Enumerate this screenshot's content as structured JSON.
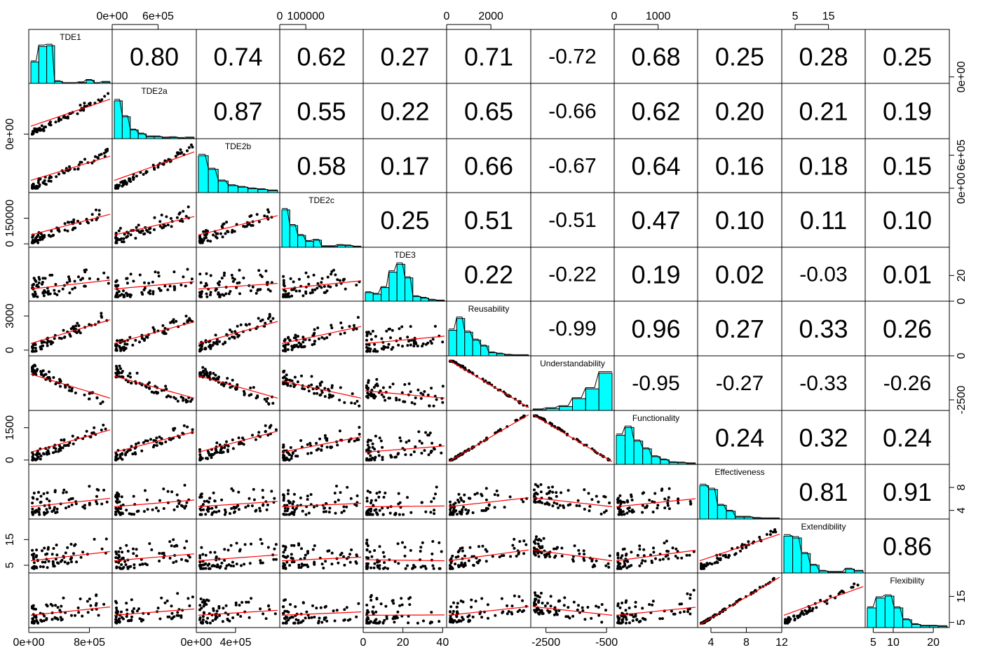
{
  "chart_data": {
    "type": "scatter-matrix",
    "variables": [
      "TDE1",
      "TDE2a",
      "TDE2b",
      "TDE2c",
      "TDE3",
      "Reusability",
      "Understandability",
      "Functionality",
      "Effectiveness",
      "Extendibility",
      "Flexibility"
    ],
    "correlations": [
      [
        "",
        "0.80",
        "0.74",
        "0.62",
        "0.27",
        "0.71",
        "-0.72",
        "0.68",
        "0.25",
        "0.28",
        "0.25"
      ],
      [
        "",
        "",
        "0.87",
        "0.55",
        "0.22",
        "0.65",
        "-0.66",
        "0.62",
        "0.20",
        "0.21",
        "0.19"
      ],
      [
        "",
        "",
        "",
        "0.58",
        "0.17",
        "0.66",
        "-0.67",
        "0.64",
        "0.16",
        "0.18",
        "0.15"
      ],
      [
        "",
        "",
        "",
        "",
        "0.25",
        "0.51",
        "-0.51",
        "0.47",
        "0.10",
        "0.11",
        "0.10"
      ],
      [
        "",
        "",
        "",
        "",
        "",
        "0.22",
        "-0.22",
        "0.19",
        "0.02",
        "-0.03",
        "0.01"
      ],
      [
        "",
        "",
        "",
        "",
        "",
        "",
        "-0.99",
        "0.96",
        "0.27",
        "0.33",
        "0.26"
      ],
      [
        "",
        "",
        "",
        "",
        "",
        "",
        "",
        "-0.95",
        "-0.27",
        "-0.33",
        "-0.26"
      ],
      [
        "",
        "",
        "",
        "",
        "",
        "",
        "",
        "",
        "0.24",
        "0.32",
        "0.24"
      ],
      [
        "",
        "",
        "",
        "",
        "",
        "",
        "",
        "",
        "",
        "0.81",
        "0.91"
      ],
      [
        "",
        "",
        "",
        "",
        "",
        "",
        "",
        "",
        "",
        "",
        "0.86"
      ]
    ],
    "top_axis": [
      {
        "col": 1,
        "ticks": [
          {
            "v": 0,
            "label": "0e+00"
          },
          {
            "v": 600000,
            "label": "6e+05"
          }
        ],
        "range": [
          0,
          1100000
        ]
      },
      {
        "col": 3,
        "ticks": [
          {
            "v": 0,
            "label": "0"
          },
          {
            "v": 100000,
            "label": "100000"
          }
        ],
        "range": [
          0,
          320000
        ]
      },
      {
        "col": 5,
        "ticks": [
          {
            "v": 0,
            "label": "0"
          },
          {
            "v": 2000,
            "label": "2000"
          }
        ],
        "range": [
          0,
          3800
        ]
      },
      {
        "col": 7,
        "ticks": [
          {
            "v": 0,
            "label": "0"
          },
          {
            "v": 1000,
            "label": "1000"
          }
        ],
        "range": [
          0,
          1900
        ]
      },
      {
        "col": 9,
        "ticks": [
          {
            "v": 5,
            "label": "5"
          },
          {
            "v": 15,
            "label": "15"
          }
        ],
        "range": [
          1,
          26
        ]
      }
    ],
    "bottom_axis": [
      {
        "col": 0,
        "ticks": [
          {
            "v": 0,
            "label": "0e+00"
          },
          {
            "v": 800000,
            "label": "8e+05"
          }
        ],
        "range": [
          0,
          1100000
        ]
      },
      {
        "col": 2,
        "ticks": [
          {
            "v": 0,
            "label": "0e+00"
          },
          {
            "v": 400000,
            "label": "4e+05"
          }
        ],
        "range": [
          0,
          850000
        ]
      },
      {
        "col": 4,
        "ticks": [
          {
            "v": 0,
            "label": "0"
          },
          {
            "v": 20,
            "label": "20"
          },
          {
            "v": 40,
            "label": "40"
          }
        ],
        "range": [
          0,
          42
        ]
      },
      {
        "col": 6,
        "ticks": [
          {
            "v": -2500,
            "label": "-2500"
          },
          {
            "v": -500,
            "label": "-500"
          }
        ],
        "range": [
          -3000,
          -250
        ]
      },
      {
        "col": 8,
        "ticks": [
          {
            "v": 4,
            "label": "4"
          },
          {
            "v": 8,
            "label": "8"
          },
          {
            "v": 12,
            "label": "12"
          }
        ],
        "range": [
          2.5,
          12
        ]
      },
      {
        "col": 10,
        "ticks": [
          {
            "v": 5,
            "label": "5"
          },
          {
            "v": 10,
            "label": "10"
          },
          {
            "v": 20,
            "label": "20"
          }
        ],
        "range": [
          3,
          24
        ]
      }
    ],
    "left_axis": [
      {
        "row": 1,
        "ticks": [
          {
            "v": 0,
            "label": "0e+00"
          }
        ],
        "range": [
          -100000,
          1100000
        ]
      },
      {
        "row": 3,
        "ticks": [
          {
            "v": 0,
            "label": "0"
          },
          {
            "v": 150000,
            "label": "150000"
          }
        ],
        "range": [
          -20000,
          300000
        ]
      },
      {
        "row": 5,
        "ticks": [
          {
            "v": 0,
            "label": "0"
          },
          {
            "v": 3000,
            "label": "3000"
          }
        ],
        "range": [
          -500,
          4300
        ]
      },
      {
        "row": 7,
        "ticks": [
          {
            "v": 0,
            "label": "0"
          },
          {
            "v": 1500,
            "label": "1500"
          }
        ],
        "range": [
          -200,
          2300
        ]
      },
      {
        "row": 9,
        "ticks": [
          {
            "v": 5,
            "label": "5"
          },
          {
            "v": 15,
            "label": "15"
          }
        ],
        "range": [
          2,
          23
        ]
      }
    ],
    "right_axis": [
      {
        "row": 0,
        "ticks": [
          {
            "v": 0,
            "label": "0e+00"
          }
        ],
        "range": [
          -150000,
          1100000
        ]
      },
      {
        "row": 2,
        "ticks": [
          {
            "v": 0,
            "label": "0e+00"
          },
          {
            "v": 600000,
            "label": "6e+05"
          }
        ],
        "range": [
          -80000,
          900000
        ]
      },
      {
        "row": 4,
        "ticks": [
          {
            "v": 0,
            "label": "0"
          },
          {
            "v": 20,
            "label": "20"
          }
        ],
        "range": [
          0,
          42
        ]
      },
      {
        "row": 6,
        "ticks": [
          {
            "v": -2500,
            "label": "-2500"
          },
          {
            "v": 0,
            "label": "0"
          }
        ],
        "range": [
          -3100,
          0
        ]
      },
      {
        "row": 8,
        "ticks": [
          {
            "v": 4,
            "label": "4"
          },
          {
            "v": 8,
            "label": "8"
          }
        ],
        "range": [
          2.5,
          12
        ]
      },
      {
        "row": 10,
        "ticks": [
          {
            "v": 5,
            "label": "5"
          },
          {
            "v": 15,
            "label": "15"
          }
        ],
        "range": [
          3,
          24
        ]
      }
    ],
    "colors": {
      "histogram_fill": "#00FFFF",
      "smooth_line": "#FF0000",
      "points": "#000000",
      "frame": "#000000"
    },
    "grid": false
  }
}
